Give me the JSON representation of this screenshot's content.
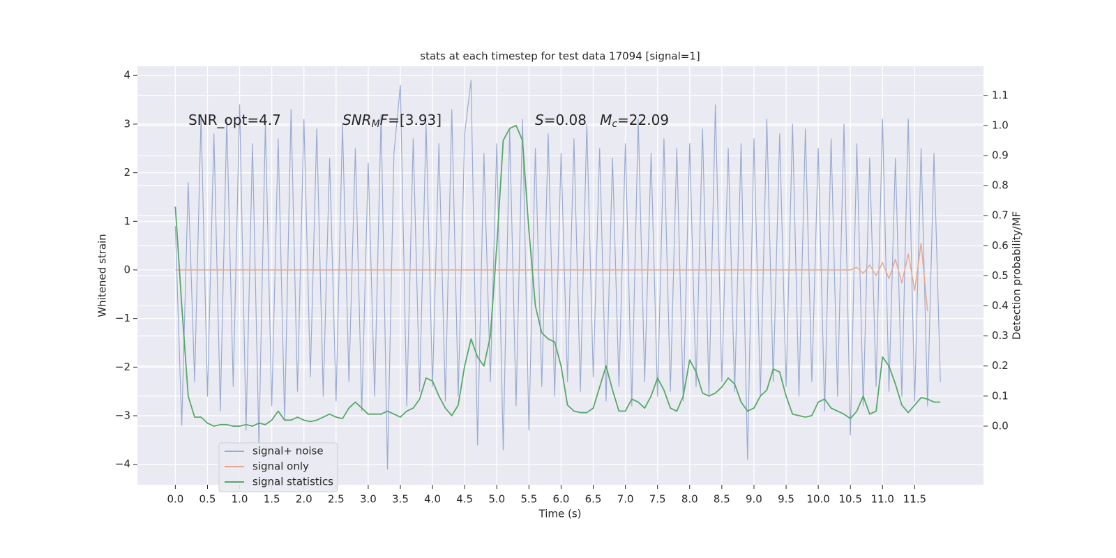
{
  "chart_data": {
    "type": "line",
    "title": "stats at each timestep for test data 17094 [signal=1]",
    "xlabel": "Time (s)",
    "ylabel": "Whitened strain",
    "y2label": "Detection probability/MF",
    "annotations": [
      [
        {
          "text": "SNR_opt=4.7",
          "style": "normal"
        }
      ],
      [
        {
          "text": "SNR",
          "style": "italic"
        },
        {
          "text": "M",
          "style": "sub"
        },
        {
          "text": "F",
          "style": "italic"
        },
        {
          "text": "=[3.93]",
          "style": "normal"
        }
      ],
      [
        {
          "text": "S",
          "style": "italic"
        },
        {
          "text": "=0.08   ",
          "style": "normal"
        },
        {
          "text": "M",
          "style": "italic"
        },
        {
          "text": "c",
          "style": "sub"
        },
        {
          "text": "=22.09",
          "style": "normal"
        }
      ]
    ],
    "x": [
      0.0,
      0.1,
      0.2,
      0.3,
      0.4,
      0.5,
      0.6,
      0.7,
      0.8,
      0.9,
      1.0,
      1.1,
      1.2,
      1.3,
      1.4,
      1.5,
      1.6,
      1.7,
      1.8,
      1.9,
      2.0,
      2.1,
      2.2,
      2.3,
      2.4,
      2.5,
      2.6,
      2.7,
      2.8,
      2.9,
      3.0,
      3.1,
      3.2,
      3.3,
      3.4,
      3.5,
      3.6,
      3.7,
      3.8,
      3.9,
      4.0,
      4.1,
      4.2,
      4.3,
      4.4,
      4.5,
      4.6,
      4.7,
      4.8,
      4.9,
      5.0,
      5.1,
      5.2,
      5.3,
      5.4,
      5.5,
      5.6,
      5.7,
      5.8,
      5.9,
      6.0,
      6.1,
      6.2,
      6.3,
      6.4,
      6.5,
      6.6,
      6.7,
      6.8,
      6.9,
      7.0,
      7.1,
      7.2,
      7.3,
      7.4,
      7.5,
      7.6,
      7.7,
      7.8,
      7.9,
      8.0,
      8.1,
      8.2,
      8.3,
      8.4,
      8.5,
      8.6,
      8.7,
      8.8,
      8.9,
      9.0,
      9.1,
      9.2,
      9.3,
      9.4,
      9.5,
      9.6,
      9.7,
      9.8,
      9.9,
      10.0,
      10.1,
      10.2,
      10.3,
      10.4,
      10.5,
      10.6,
      10.7,
      10.8,
      10.9,
      11.0,
      11.1,
      11.2,
      11.3,
      11.4,
      11.5,
      11.6,
      11.7,
      11.8,
      11.9
    ],
    "series": [
      {
        "name": "signal+ noise",
        "color": "#9aabd0",
        "axis": "y",
        "width": 1.2,
        "values": [
          0.9,
          -3.2,
          1.8,
          -2.3,
          3.2,
          -2.6,
          2.8,
          -2.9,
          3.1,
          -2.4,
          3.4,
          -3.3,
          2.6,
          -3.6,
          3.0,
          -2.8,
          2.7,
          -3.1,
          3.3,
          -2.5,
          3.1,
          -2.2,
          2.9,
          -2.6,
          2.3,
          -2.7,
          3.0,
          -2.3,
          2.5,
          -2.9,
          2.2,
          -2.6,
          3.2,
          -4.1,
          2.4,
          3.8,
          -2.8,
          2.7,
          -2.5,
          3.0,
          -2.4,
          2.6,
          -2.7,
          3.3,
          -2.6,
          2.8,
          3.9,
          -3.6,
          2.4,
          -2.3,
          2.6,
          -3.7,
          2.9,
          -2.8,
          3.1,
          -3.3,
          2.5,
          -2.4,
          2.8,
          -2.6,
          2.4,
          -2.3,
          2.7,
          -2.5,
          3.0,
          -2.2,
          2.5,
          -2.7,
          2.3,
          -2.4,
          2.6,
          -2.8,
          3.1,
          -2.3,
          2.4,
          -2.6,
          2.7,
          -2.5,
          2.5,
          -2.7,
          2.6,
          -2.4,
          2.9,
          -2.6,
          3.4,
          -2.3,
          2.5,
          -2.5,
          2.6,
          -3.9,
          2.7,
          -2.6,
          3.1,
          -2.3,
          2.8,
          -2.4,
          3.0,
          -2.6,
          2.9,
          -2.3,
          2.5,
          -2.9,
          2.7,
          -2.6,
          3.0,
          -3.4,
          2.6,
          -2.8,
          2.3,
          -2.4,
          3.1,
          -2.5,
          2.3,
          -2.6,
          3.1,
          -2.7,
          2.5,
          -2.8,
          2.4,
          -2.3
        ]
      },
      {
        "name": "signal only",
        "color": "#e6a98f",
        "axis": "y",
        "width": 1.5,
        "values": [
          0,
          0,
          0,
          0,
          0,
          0,
          0,
          0,
          0,
          0,
          0,
          0,
          0,
          0,
          0,
          0,
          0,
          0,
          0,
          0,
          0,
          0,
          0,
          0,
          0,
          0,
          0,
          0,
          0,
          0,
          0,
          0,
          0,
          0,
          0,
          0,
          0,
          0,
          0,
          0,
          0,
          0,
          0,
          0,
          0,
          0,
          0,
          0,
          0,
          0,
          0,
          0,
          0,
          0,
          0,
          0,
          0,
          0,
          0,
          0,
          0,
          0,
          0,
          0,
          0,
          0,
          0,
          0,
          0,
          0,
          0,
          0,
          0,
          0,
          0,
          0,
          0,
          0,
          0,
          0,
          0,
          0,
          0,
          0,
          0,
          0,
          0,
          0,
          0,
          0,
          0,
          0,
          0,
          0,
          0,
          0,
          0,
          0,
          0,
          0,
          0,
          0,
          0,
          0,
          0,
          0,
          0.05,
          -0.07,
          0.1,
          -0.12,
          0.15,
          -0.18,
          0.22,
          -0.27,
          0.33,
          -0.42,
          0.55,
          -0.85,
          null,
          null
        ]
      },
      {
        "name": "signal statistics",
        "color": "#55a868",
        "axis": "y2",
        "width": 1.8,
        "values": [
          0.73,
          0.4,
          0.1,
          0.03,
          0.03,
          0.01,
          0.0,
          0.005,
          0.005,
          0.0,
          0.0,
          0.005,
          0.0,
          0.01,
          0.005,
          0.02,
          0.05,
          0.02,
          0.02,
          0.03,
          0.02,
          0.015,
          0.02,
          0.03,
          0.04,
          0.03,
          0.025,
          0.06,
          0.08,
          0.06,
          0.04,
          0.04,
          0.04,
          0.05,
          0.04,
          0.03,
          0.05,
          0.06,
          0.09,
          0.16,
          0.15,
          0.1,
          0.06,
          0.035,
          0.07,
          0.2,
          0.29,
          0.23,
          0.2,
          0.3,
          0.6,
          0.95,
          0.99,
          1.0,
          0.95,
          0.65,
          0.4,
          0.31,
          0.29,
          0.28,
          0.2,
          0.07,
          0.05,
          0.045,
          0.045,
          0.06,
          0.13,
          0.2,
          0.12,
          0.05,
          0.05,
          0.09,
          0.08,
          0.06,
          0.1,
          0.16,
          0.12,
          0.06,
          0.05,
          0.1,
          0.22,
          0.18,
          0.11,
          0.1,
          0.11,
          0.13,
          0.16,
          0.14,
          0.08,
          0.05,
          0.06,
          0.1,
          0.12,
          0.19,
          0.18,
          0.1,
          0.04,
          0.035,
          0.03,
          0.035,
          0.08,
          0.09,
          0.06,
          0.05,
          0.04,
          0.025,
          0.05,
          0.1,
          0.04,
          0.05,
          0.23,
          0.2,
          0.14,
          0.07,
          0.045,
          0.07,
          0.095,
          0.09,
          0.08,
          0.08
        ]
      }
    ],
    "xlim": [
      -0.59,
      12.57
    ],
    "ylim": [
      -4.42,
      4.19
    ],
    "y2lim": [
      -0.195,
      1.197
    ],
    "xticks": [
      {
        "value": 0,
        "label": "0.0"
      },
      0.5,
      {
        "value": 1,
        "label": "1.0"
      },
      1.5,
      {
        "value": 2,
        "label": "2.0"
      },
      2.5,
      {
        "value": 3,
        "label": "3.0"
      },
      3.5,
      {
        "value": 4,
        "label": "4.0"
      },
      4.5,
      {
        "value": 5,
        "label": "5.0"
      },
      5.5,
      {
        "value": 6,
        "label": "6.0"
      },
      6.5,
      {
        "value": 7,
        "label": "7.0"
      },
      7.5,
      {
        "value": 8,
        "label": "8.0"
      },
      8.5,
      {
        "value": 9,
        "label": "9.0"
      },
      9.5,
      {
        "value": 10,
        "label": "10.0"
      },
      10.5,
      {
        "value": 11,
        "label": "11.0"
      },
      11.5
    ],
    "yticks": [
      {
        "value": -4,
        "label": "−4"
      },
      {
        "value": -3,
        "label": "−3"
      },
      {
        "value": -2,
        "label": "−2"
      },
      {
        "value": -1,
        "label": "−1"
      },
      0,
      1,
      2,
      3,
      4
    ],
    "y2ticks": [
      {
        "value": 0,
        "label": "0.0"
      },
      0.1,
      0.2,
      0.3,
      0.4,
      0.5,
      0.6,
      0.7,
      0.8,
      0.9,
      {
        "value": 1,
        "label": "1.0"
      },
      1.1
    ],
    "grid": true,
    "legend": "lower left"
  }
}
